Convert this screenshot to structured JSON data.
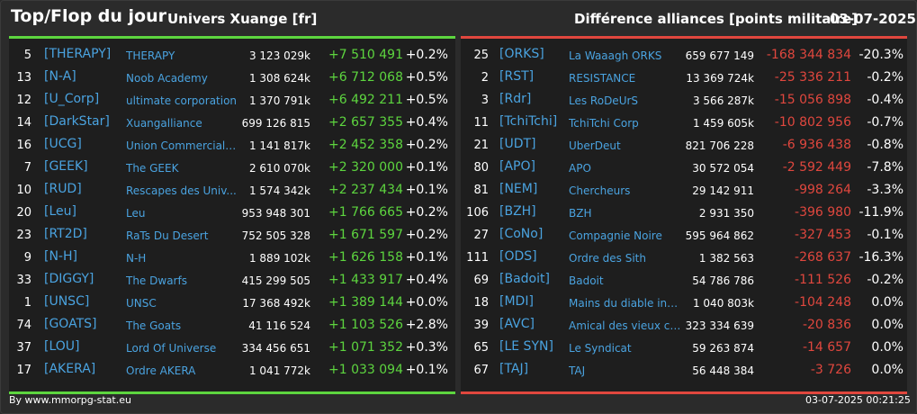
{
  "header": {
    "title": "Top/Flop du jour",
    "universe": "Univers Xuange [fr]",
    "subtitle": "Différence alliances [points militaire]",
    "date": "03-07-2025"
  },
  "colors": {
    "positive": "#5dd53f",
    "negative": "#e0473e",
    "tag": "#4aa3e0",
    "background": "#2b2b2b",
    "panel": "#1e1e1e"
  },
  "top": [
    {
      "rank": "5",
      "tag": "[THERAPY]",
      "name": "THERAPY",
      "points": "3 123 029k",
      "diff": "+7 510 491",
      "pct": "+0.2%"
    },
    {
      "rank": "13",
      "tag": "[N-A]",
      "name": "Noob Academy",
      "points": "1 308 624k",
      "diff": "+6 712 068",
      "pct": "+0.5%"
    },
    {
      "rank": "12",
      "tag": "[U_Corp]",
      "name": "ultimate corporation",
      "points": "1 370 791k",
      "diff": "+6 492 211",
      "pct": "+0.5%"
    },
    {
      "rank": "14",
      "tag": "[DarkStar]",
      "name": "Xuangalliance",
      "points": "699 126 815",
      "diff": "+2 657 355",
      "pct": "+0.4%"
    },
    {
      "rank": "16",
      "tag": "[UCG]",
      "name": "Union Commerciale...",
      "points": "1 141 817k",
      "diff": "+2 452 358",
      "pct": "+0.2%"
    },
    {
      "rank": "7",
      "tag": "[GEEK]",
      "name": "The GEEK",
      "points": "2 610 070k",
      "diff": "+2 320 000",
      "pct": "+0.1%"
    },
    {
      "rank": "10",
      "tag": "[RUD]",
      "name": "Rescapes des Univ...",
      "points": "1 574 342k",
      "diff": "+2 237 434",
      "pct": "+0.1%"
    },
    {
      "rank": "20",
      "tag": "[Leu]",
      "name": "Leu",
      "points": "953 948 301",
      "diff": "+1 766 665",
      "pct": "+0.2%"
    },
    {
      "rank": "23",
      "tag": "[RT2D]",
      "name": "RaTs Du Desert",
      "points": "752 505 328",
      "diff": "+1 671 597",
      "pct": "+0.2%"
    },
    {
      "rank": "9",
      "tag": "[N-H]",
      "name": "N-H",
      "points": "1 889 102k",
      "diff": "+1 626 158",
      "pct": "+0.1%"
    },
    {
      "rank": "33",
      "tag": "[DIGGY]",
      "name": "The Dwarfs",
      "points": "415 299 505",
      "diff": "+1 433 917",
      "pct": "+0.4%"
    },
    {
      "rank": "1",
      "tag": "[UNSC]",
      "name": "UNSC",
      "points": "17 368 492k",
      "diff": "+1 389 144",
      "pct": "+0.0%"
    },
    {
      "rank": "74",
      "tag": "[GOATS]",
      "name": "The Goats",
      "points": "41 116 524",
      "diff": "+1 103 526",
      "pct": "+2.8%"
    },
    {
      "rank": "37",
      "tag": "[LOU]",
      "name": "Lord Of Universe",
      "points": "334 456 651",
      "diff": "+1 071 352",
      "pct": "+0.3%"
    },
    {
      "rank": "17",
      "tag": "[AKERA]",
      "name": "Ordre AKERA",
      "points": "1 041 772k",
      "diff": "+1 033 094",
      "pct": "+0.1%"
    }
  ],
  "flop": [
    {
      "rank": "25",
      "tag": "[ORKS]",
      "name": "La Waaagh ORKS",
      "points": "659 677 149",
      "diff": "-168 344 834",
      "pct": "-20.3%"
    },
    {
      "rank": "2",
      "tag": "[RST]",
      "name": "RESISTANCE",
      "points": "13 369 724k",
      "diff": "-25 336 211",
      "pct": "-0.2%"
    },
    {
      "rank": "3",
      "tag": "[Rdr]",
      "name": "Les RoDeUrS",
      "points": "3 566 287k",
      "diff": "-15 056 898",
      "pct": "-0.4%"
    },
    {
      "rank": "11",
      "tag": "[TchiTchi]",
      "name": "TchiTchi Corp",
      "points": "1 459 605k",
      "diff": "-10 802 956",
      "pct": "-0.7%"
    },
    {
      "rank": "21",
      "tag": "[UDT]",
      "name": "UberDeut",
      "points": "821 706 228",
      "diff": "-6 936 438",
      "pct": "-0.8%"
    },
    {
      "rank": "80",
      "tag": "[APO]",
      "name": "APO",
      "points": "30 572 054",
      "diff": "-2 592 449",
      "pct": "-7.8%"
    },
    {
      "rank": "81",
      "tag": "[NEM]",
      "name": "Chercheurs",
      "points": "29 142 911",
      "diff": "-998 264",
      "pct": "-3.3%"
    },
    {
      "rank": "106",
      "tag": "[BZH]",
      "name": "BZH",
      "points": "2 931 350",
      "diff": "-396 980",
      "pct": "-11.9%"
    },
    {
      "rank": "27",
      "tag": "[CoNo]",
      "name": "Compagnie Noire",
      "points": "595 964 862",
      "diff": "-327 453",
      "pct": "-0.1%"
    },
    {
      "rank": "111",
      "tag": "[ODS]",
      "name": "Ordre des Sith",
      "points": "1 382 563",
      "diff": "-268 637",
      "pct": "-16.3%"
    },
    {
      "rank": "69",
      "tag": "[Badoit]",
      "name": "Badoit",
      "points": "54 786 786",
      "diff": "-111 526",
      "pct": "-0.2%"
    },
    {
      "rank": "18",
      "tag": "[MDI]",
      "name": "Mains du diable inco...",
      "points": "1 040 803k",
      "diff": "-104 248",
      "pct": "0.0%"
    },
    {
      "rank": "39",
      "tag": "[AVC]",
      "name": "Amical des vieux con",
      "points": "323 334 639",
      "diff": "-20 836",
      "pct": "0.0%"
    },
    {
      "rank": "65",
      "tag": "[LE SYN]",
      "name": "Le Syndicat",
      "points": "59 263 874",
      "diff": "-14 657",
      "pct": "0.0%"
    },
    {
      "rank": "67",
      "tag": "[TAJ]",
      "name": "TAJ",
      "points": "56 448 384",
      "diff": "-3 726",
      "pct": "0.0%"
    }
  ],
  "footer": {
    "source": "By www.mmorpg-stat.eu",
    "timestamp": "03-07-2025 00:21:25"
  }
}
